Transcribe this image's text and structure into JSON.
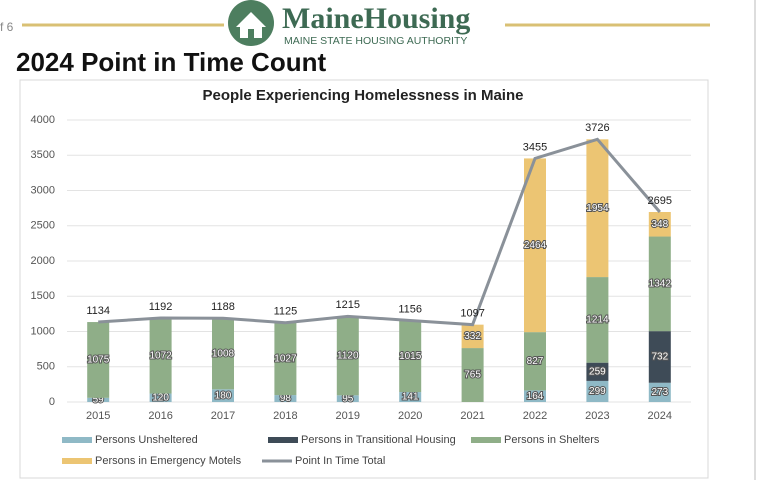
{
  "page": {
    "page_number": "f 6",
    "logo_name": "MaineHousing",
    "logo_tagline": "MAINE STATE HOUSING AUTHORITY",
    "heading": "2024 Point in Time Count"
  },
  "chart_data": {
    "type": "bar",
    "stacked": true,
    "title": "People Experiencing Homelessness in Maine",
    "categories": [
      "2015",
      "2016",
      "2017",
      "2018",
      "2019",
      "2020",
      "2021",
      "2022",
      "2023",
      "2024"
    ],
    "series": [
      {
        "name": "Persons Unsheltered",
        "color": "#8fb9c6",
        "values": [
          59,
          120,
          180,
          98,
          95,
          141,
          null,
          164,
          299,
          273
        ]
      },
      {
        "name": "Persons in Transitional Housing",
        "color": "#3e4b57",
        "values": [
          null,
          null,
          null,
          null,
          null,
          null,
          null,
          null,
          259,
          732
        ]
      },
      {
        "name": "Persons in Shelters",
        "color": "#8fae88",
        "values": [
          1075,
          1072,
          1008,
          1027,
          1120,
          1015,
          765,
          827,
          1214,
          1342
        ]
      },
      {
        "name": "Persons in Emergency Motels",
        "color": "#ecc573",
        "values": [
          null,
          null,
          null,
          null,
          null,
          null,
          332,
          2464,
          1954,
          348
        ]
      },
      {
        "name": "Point In Time Total",
        "type": "line",
        "color": "#8a9199",
        "values": [
          1134,
          1192,
          1188,
          1125,
          1215,
          1156,
          1097,
          3455,
          3726,
          2695
        ]
      }
    ],
    "ylim": [
      0,
      4000
    ],
    "yticks": [
      0,
      500,
      1000,
      1500,
      2000,
      2500,
      3000,
      3500,
      4000
    ],
    "grid": true
  }
}
